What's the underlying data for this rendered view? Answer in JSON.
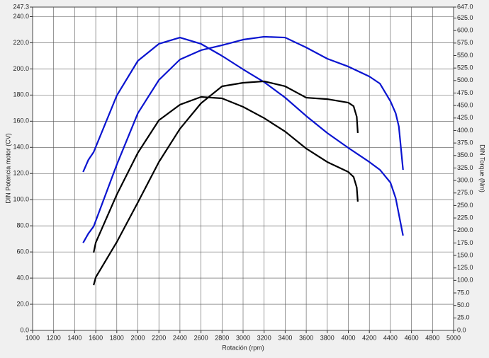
{
  "chart_data": {
    "type": "line",
    "xlabel": "Rotación (rpm)",
    "ylabel": "DIN Potencia motor (CV)",
    "y2label": "DIN Torque (Nm)",
    "xlim": [
      1000,
      5000
    ],
    "ylim": [
      0,
      247.3
    ],
    "y2lim": [
      0,
      647.0
    ],
    "grid": true,
    "xticks": [
      1000,
      1200,
      1400,
      1600,
      1800,
      2000,
      2200,
      2400,
      2600,
      2800,
      3000,
      3200,
      3400,
      3600,
      3800,
      4000,
      4200,
      4400,
      4600,
      4800,
      5000
    ],
    "yticks": [
      {
        "value": 0,
        "label": "0.0"
      },
      {
        "value": 20,
        "label": "20.0"
      },
      {
        "value": 40,
        "label": "40.0"
      },
      {
        "value": 60,
        "label": "60.0"
      },
      {
        "value": 80,
        "label": "80.0"
      },
      {
        "value": 100,
        "label": "100.0"
      },
      {
        "value": 120,
        "label": "120.0"
      },
      {
        "value": 140,
        "label": "140.0"
      },
      {
        "value": 160,
        "label": "160.0"
      },
      {
        "value": 180,
        "label": "180.0"
      },
      {
        "value": 200,
        "label": "200.0"
      },
      {
        "value": 220,
        "label": "220.0"
      },
      {
        "value": 240,
        "label": "240.0"
      },
      247.3
    ],
    "y2ticks": [
      {
        "value": 0,
        "label": "0.0"
      },
      {
        "value": 25,
        "label": "25.0"
      },
      {
        "value": 50,
        "label": "50.0"
      },
      {
        "value": 75,
        "label": "75.0"
      },
      {
        "value": 100,
        "label": "100.0"
      },
      {
        "value": 125,
        "label": "125.0"
      },
      {
        "value": 150,
        "label": "150.0"
      },
      {
        "value": 175,
        "label": "175.0"
      },
      {
        "value": 200,
        "label": "200.0"
      },
      {
        "value": 225,
        "label": "225.0"
      },
      {
        "value": 250,
        "label": "250.0"
      },
      {
        "value": 275,
        "label": "275.0"
      },
      {
        "value": 300,
        "label": "300.0"
      },
      {
        "value": 325,
        "label": "325.0"
      },
      {
        "value": 350,
        "label": "350.0"
      },
      {
        "value": 375,
        "label": "375.0"
      },
      {
        "value": 400,
        "label": "400.0"
      },
      {
        "value": 425,
        "label": "425.0"
      },
      {
        "value": 450,
        "label": "450.0"
      },
      {
        "value": 475,
        "label": "475.0"
      },
      {
        "value": 500,
        "label": "500.0"
      },
      {
        "value": 525,
        "label": "525.0"
      },
      {
        "value": 550,
        "label": "550.0"
      },
      {
        "value": 575,
        "label": "575.0"
      },
      {
        "value": 600,
        "label": "600.0"
      },
      {
        "value": 625,
        "label": "625.0"
      },
      {
        "value": 647,
        "label": "647.0"
      }
    ],
    "series": [
      {
        "color": "#0a14d0",
        "axis": "y",
        "x": [
          1480,
          1530,
          1580,
          1800,
          2000,
          2200,
          2400,
          2600,
          2800,
          3000,
          3200,
          3400,
          3600,
          3800,
          4000,
          4200,
          4300,
          4400,
          4450,
          4480,
          4520
        ],
        "values": [
          67,
          74.1,
          79.5,
          126.8,
          166.1,
          191.5,
          207.2,
          214.3,
          218.1,
          222.4,
          224.6,
          224.0,
          216.4,
          207.8,
          201.8,
          194.2,
          188.8,
          175.3,
          166.1,
          156,
          122.8
        ]
      },
      {
        "color": "#0a14d0",
        "axis": "y2",
        "x": [
          1480,
          1530,
          1580,
          1800,
          2000,
          2200,
          2400,
          2600,
          2800,
          3000,
          3200,
          3400,
          3600,
          3800,
          4000,
          4200,
          4300,
          4400,
          4450,
          4520
        ],
        "values": [
          317.1,
          341.2,
          356.8,
          470.0,
          539.4,
          573.4,
          586.1,
          573.4,
          549.3,
          522.4,
          496.9,
          465.8,
          429.0,
          395.0,
          365.3,
          337.0,
          321.4,
          295.9,
          264.8,
          189.7
        ]
      },
      {
        "color": "#000000",
        "axis": "y",
        "x": [
          1580,
          1600,
          1800,
          2000,
          2200,
          2400,
          2600,
          2800,
          3000,
          3200,
          3400,
          3600,
          3800,
          4000,
          4050,
          4080,
          4090
        ],
        "values": [
          34.6,
          40.6,
          67.6,
          97.9,
          128.8,
          154.2,
          173.7,
          186.7,
          189.4,
          190.5,
          186.7,
          178.0,
          176.9,
          174.2,
          171.5,
          163.4,
          151.0
        ]
      },
      {
        "color": "#000000",
        "axis": "y2",
        "x": [
          1580,
          1600,
          1800,
          2000,
          2200,
          2400,
          2600,
          2800,
          3000,
          3200,
          3400,
          3600,
          3800,
          4000,
          4050,
          4080,
          4090
        ],
        "values": [
          155.7,
          175.6,
          271.8,
          355.4,
          420.5,
          451.6,
          467.2,
          464.4,
          447.4,
          424.8,
          397.9,
          363.9,
          337.0,
          317.1,
          307.2,
          286.0,
          257.7
        ]
      }
    ]
  }
}
